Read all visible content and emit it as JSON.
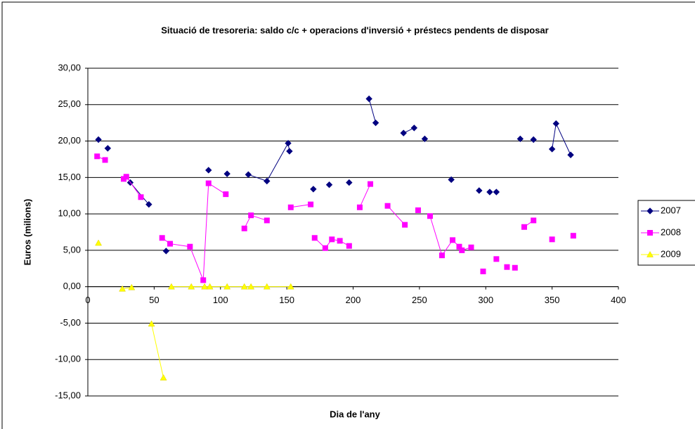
{
  "chart_data": {
    "type": "scatter",
    "title": "Situació de tresoreria: saldo c/c + operacions d'inversió + préstecs pendents de disposar",
    "x_label": "Dia de l'any",
    "y_label": "Euros (milions)",
    "xlim": [
      0,
      400
    ],
    "xticks": [
      0,
      50,
      100,
      150,
      200,
      250,
      300,
      350,
      400
    ],
    "ylim": [
      -15,
      30
    ],
    "yticks": [
      {
        "value": -15,
        "label": "-15,00"
      },
      {
        "value": -10,
        "label": "-10,00"
      },
      {
        "value": -5,
        "label": "-5,00"
      },
      {
        "value": 0,
        "label": "0,00"
      },
      {
        "value": 5,
        "label": "5,00"
      },
      {
        "value": 10,
        "label": "10,00"
      },
      {
        "value": 15,
        "label": "15,00"
      },
      {
        "value": 20,
        "label": "20,00"
      },
      {
        "value": 25,
        "label": "25,00"
      },
      {
        "value": 30,
        "label": "30,00"
      }
    ],
    "grid": true,
    "legend": "right",
    "series": [
      {
        "name": "2007",
        "color": "#000080",
        "marker": "diamond",
        "x": [
          8,
          null,
          15,
          null,
          32,
          46,
          null,
          59,
          null,
          91,
          null,
          105,
          null,
          121,
          135,
          151,
          152,
          null,
          170,
          null,
          182,
          null,
          197,
          null,
          212,
          217,
          null,
          238,
          246,
          null,
          254,
          null,
          274,
          null,
          295,
          null,
          303,
          null,
          308,
          null,
          326,
          null,
          336,
          null,
          350,
          353,
          364
        ],
        "values": [
          20.2,
          null,
          19.0,
          null,
          14.3,
          11.3,
          null,
          4.9,
          null,
          16.0,
          null,
          15.5,
          null,
          15.4,
          14.5,
          19.7,
          18.6,
          null,
          13.4,
          null,
          14.0,
          null,
          14.3,
          null,
          25.8,
          22.5,
          null,
          21.1,
          21.8,
          null,
          20.3,
          null,
          14.7,
          null,
          13.2,
          null,
          13.0,
          null,
          13.0,
          null,
          20.3,
          null,
          20.2,
          null,
          18.9,
          22.4,
          18.1
        ]
      },
      {
        "name": "2008",
        "color": "#ff00ff",
        "marker": "square",
        "x": [
          7,
          13,
          null,
          27,
          29,
          40,
          null,
          56,
          62,
          77,
          87,
          91,
          104,
          null,
          118,
          123,
          135,
          null,
          153,
          168,
          null,
          171,
          179,
          184,
          190,
          197,
          null,
          205,
          213,
          null,
          226,
          239,
          null,
          249,
          null,
          258,
          267,
          275,
          280,
          282,
          289,
          null,
          298,
          null,
          308,
          null,
          316,
          null,
          322,
          null,
          329,
          336,
          null,
          350,
          null,
          366
        ],
        "values": [
          17.9,
          17.4,
          null,
          14.8,
          15.1,
          12.3,
          null,
          6.7,
          5.9,
          5.5,
          0.9,
          14.2,
          12.7,
          null,
          8.0,
          9.8,
          9.1,
          null,
          10.9,
          11.3,
          null,
          6.7,
          5.3,
          6.5,
          6.3,
          5.6,
          null,
          10.9,
          14.1,
          null,
          11.1,
          8.5,
          null,
          10.5,
          null,
          9.7,
          4.3,
          6.4,
          5.5,
          5.0,
          5.4,
          null,
          2.1,
          null,
          3.8,
          null,
          2.7,
          null,
          2.6,
          null,
          8.2,
          9.1,
          null,
          6.5,
          null,
          7.0
        ]
      },
      {
        "name": "2009",
        "color": "#ffff00",
        "marker": "triangle",
        "x": [
          8,
          null,
          26,
          33,
          null,
          48,
          57,
          null,
          63,
          78,
          88,
          92,
          105,
          118,
          123,
          135,
          153
        ],
        "values": [
          6.0,
          null,
          -0.3,
          -0.1,
          null,
          -5.1,
          -12.5,
          null,
          0,
          0,
          0,
          0,
          0,
          0,
          0,
          0,
          0
        ]
      }
    ]
  }
}
